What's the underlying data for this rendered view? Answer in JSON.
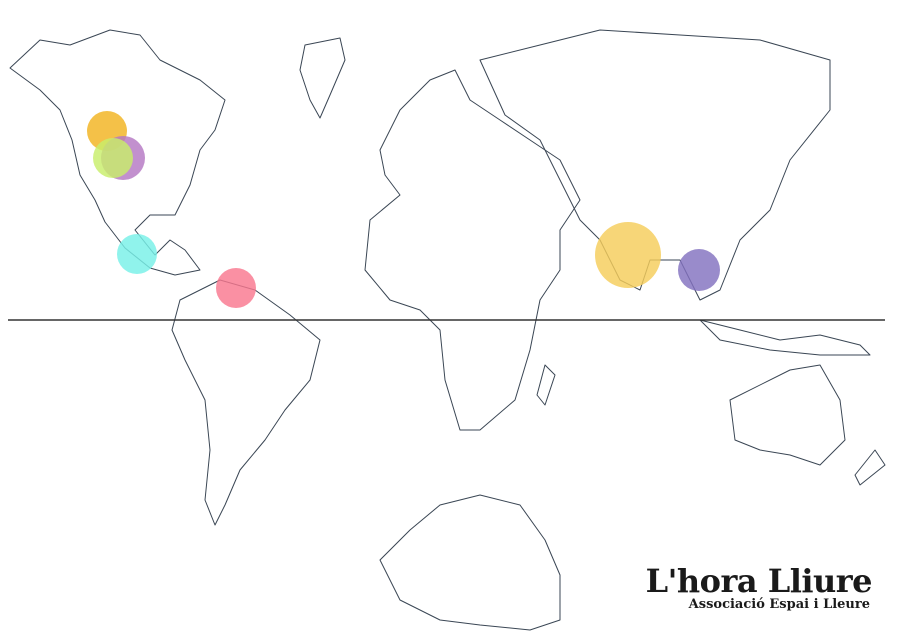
{
  "map": {
    "projection": "mercator",
    "equator_line": true,
    "markers": [
      {
        "region": "Western Canada",
        "color": "#f2b320"
      },
      {
        "region": "Central North America",
        "color": "#b578c3"
      },
      {
        "region": "North America",
        "color": "#c8ee6a"
      },
      {
        "region": "Mexico",
        "color": "#78f0e8"
      },
      {
        "region": "Venezuela",
        "color": "#f9778f"
      },
      {
        "region": "India",
        "color": "#f5cd5a"
      },
      {
        "region": "Southeast Asia",
        "color": "#8272c0"
      }
    ]
  },
  "logo": {
    "title": "L'hora Lliure",
    "subtitle": "Associació Espai i Lleure"
  }
}
